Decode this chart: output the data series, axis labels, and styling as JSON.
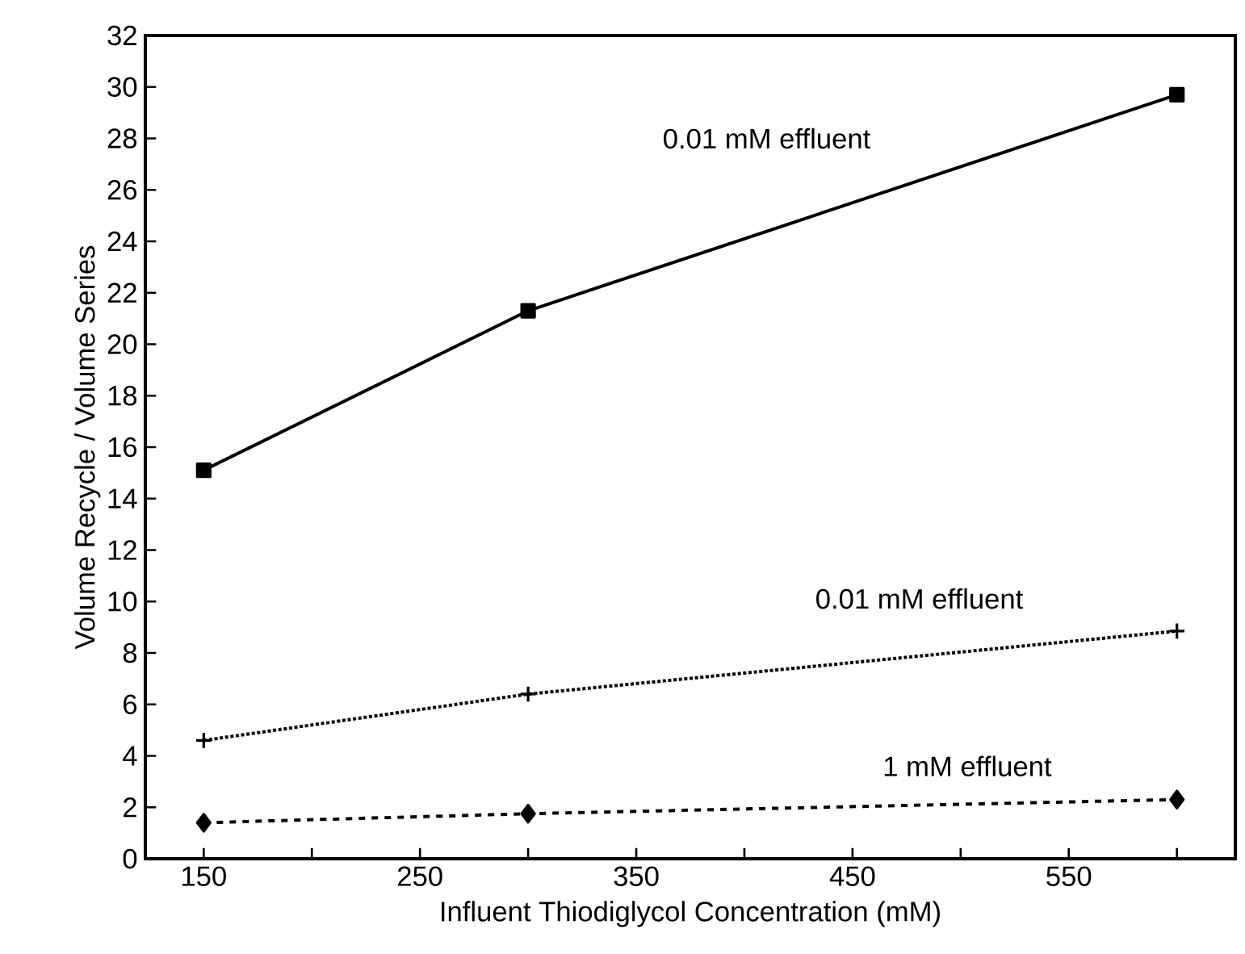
{
  "chart_data": {
    "type": "line",
    "xlabel": "Influent Thiodiglycol Concentration (mM)",
    "ylabel": "Volume Recycle / Volume Series",
    "x": [
      150,
      300,
      600
    ],
    "series": [
      {
        "color": "#000000",
        "values": [
          15.1,
          21.3,
          29.7
        ],
        "marker": "square",
        "line_style": "solid"
      },
      {
        "color": "#000000",
        "values": [
          4.6,
          6.4,
          8.85
        ],
        "marker": "cross",
        "line_style": "dotted"
      },
      {
        "color": "#000000",
        "values": [
          1.4,
          1.75,
          2.3
        ],
        "marker": "diamond",
        "line_style": "dashed"
      }
    ],
    "xlim": [
      123,
      627
    ],
    "ylim": [
      0,
      32
    ],
    "xticks": [
      150,
      {
        "value": 200,
        "label": null
      },
      250,
      {
        "value": 300,
        "label": null
      },
      350,
      {
        "value": 400,
        "label": null
      },
      450,
      {
        "value": 500,
        "label": null
      },
      550,
      {
        "value": 600,
        "label": null
      }
    ],
    "yticks": [
      0,
      2,
      4,
      6,
      8,
      10,
      12,
      14,
      16,
      18,
      20,
      22,
      24,
      26,
      28,
      30,
      32
    ],
    "annotations": [
      "0.01 mM effluent",
      "0.01 mM effluent",
      "1 mM effluent"
    ]
  }
}
